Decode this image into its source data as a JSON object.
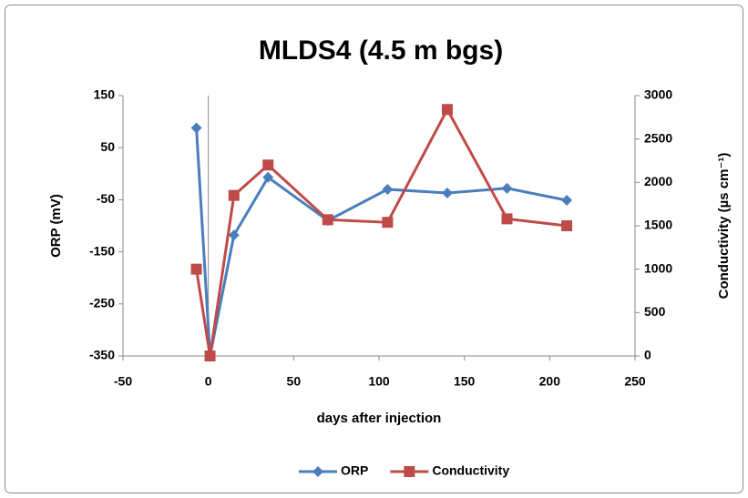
{
  "chart_data": {
    "type": "line",
    "title": "MLDS4 (4.5 m bgs)",
    "xlabel": "days after injection",
    "ylabel": "ORP (mV)",
    "y2label": "Conductivity (µs cm⁻¹)",
    "xlim": [
      -50,
      250
    ],
    "xticks": [
      -50,
      0,
      50,
      100,
      150,
      200,
      250
    ],
    "ylim": [
      -350,
      150
    ],
    "yticks": [
      -350,
      -250,
      -150,
      -50,
      50,
      150
    ],
    "y2lim": [
      0,
      3000
    ],
    "y2ticks": [
      0,
      500,
      1000,
      1500,
      2000,
      2500,
      3000
    ],
    "grid": false,
    "legend": "bottom",
    "series": [
      {
        "name": "ORP",
        "color": "#4a7ebb",
        "marker": "diamond",
        "x": [
          -7,
          1,
          15,
          35,
          70,
          105,
          140,
          175,
          210
        ],
        "values": [
          88,
          -350,
          -118,
          -7,
          -90,
          -30,
          -37,
          -28,
          -51
        ]
      },
      {
        "name": "Conductivity",
        "color": "#be4b48",
        "marker": "square",
        "axis": "y2",
        "x": [
          -7,
          1,
          15,
          35,
          70,
          105,
          140,
          175,
          210
        ],
        "values": [
          1000,
          0,
          1850,
          2200,
          1570,
          1540,
          2840,
          1580,
          1500
        ]
      }
    ]
  }
}
